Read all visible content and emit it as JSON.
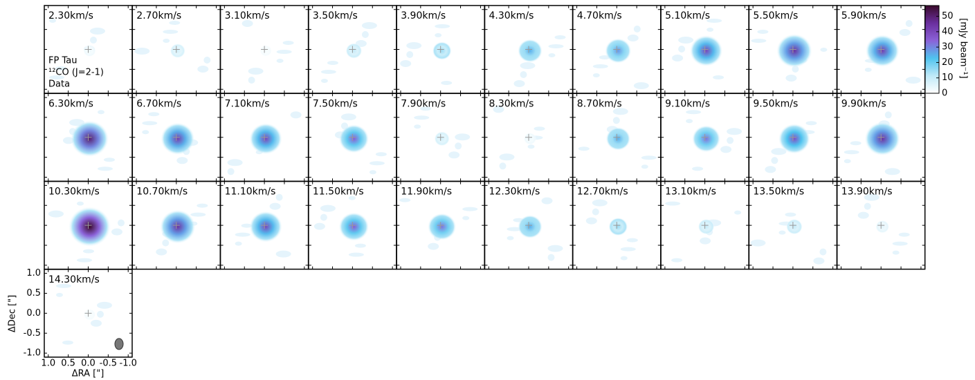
{
  "chart_data": {
    "type": "channelmap",
    "categories": [
      "2.30km/s",
      "2.70km/s",
      "3.10km/s",
      "3.50km/s",
      "3.90km/s",
      "4.30km/s",
      "4.70km/s",
      "5.10km/s",
      "5.50km/s",
      "5.90km/s",
      "6.30km/s",
      "6.70km/s",
      "7.10km/s",
      "7.50km/s",
      "7.90km/s",
      "8.30km/s",
      "8.70km/s",
      "9.10km/s",
      "9.50km/s",
      "9.90km/s",
      "10.30km/s",
      "10.70km/s",
      "11.10km/s",
      "11.50km/s",
      "11.90km/s",
      "12.30km/s",
      "12.70km/s",
      "13.10km/s",
      "13.50km/s",
      "13.90km/s",
      "14.30km/s"
    ],
    "values": [
      3,
      8,
      2,
      10,
      15,
      25,
      28,
      40,
      45,
      42,
      50,
      42,
      40,
      35,
      8,
      3,
      25,
      32,
      38,
      45,
      57,
      45,
      40,
      35,
      32,
      25,
      15,
      10,
      10,
      5,
      2
    ],
    "annotations": [
      "FP Tau",
      "¹²CO (J=2-1)",
      "Data"
    ],
    "xlabel": "ΔRA [\"]",
    "ylabel": "ΔDec [\"]",
    "xlim": [
      1.1,
      -1.1
    ],
    "ylim": [
      -1.1,
      1.1
    ],
    "xticks": [
      {
        "value": 1.0,
        "label": "1.0"
      },
      {
        "value": 0.5,
        "label": "0.5"
      },
      {
        "value": 0.0,
        "label": "0.0"
      },
      {
        "value": -0.5,
        "label": "-0.5"
      },
      {
        "value": -1.0,
        "label": "-1.0"
      }
    ],
    "yticks": [
      {
        "value": 1.0,
        "label": "1.0"
      },
      {
        "value": 0.5,
        "label": "0.5"
      },
      {
        "value": 0.0,
        "label": "0.0"
      },
      {
        "value": -0.5,
        "label": "-0.5"
      },
      {
        "value": -1.0,
        "label": "-1.0"
      }
    ],
    "colorbar": {
      "label": "[mJy beam⁻¹]",
      "lim": [
        0,
        57
      ],
      "ticks": [
        0,
        10,
        20,
        30,
        40,
        50
      ],
      "colors": [
        "#ffffff",
        "#bfe9f8",
        "#4fc3ef",
        "#8b62d8",
        "#6a2f9e",
        "#3a0a2a"
      ]
    }
  }
}
